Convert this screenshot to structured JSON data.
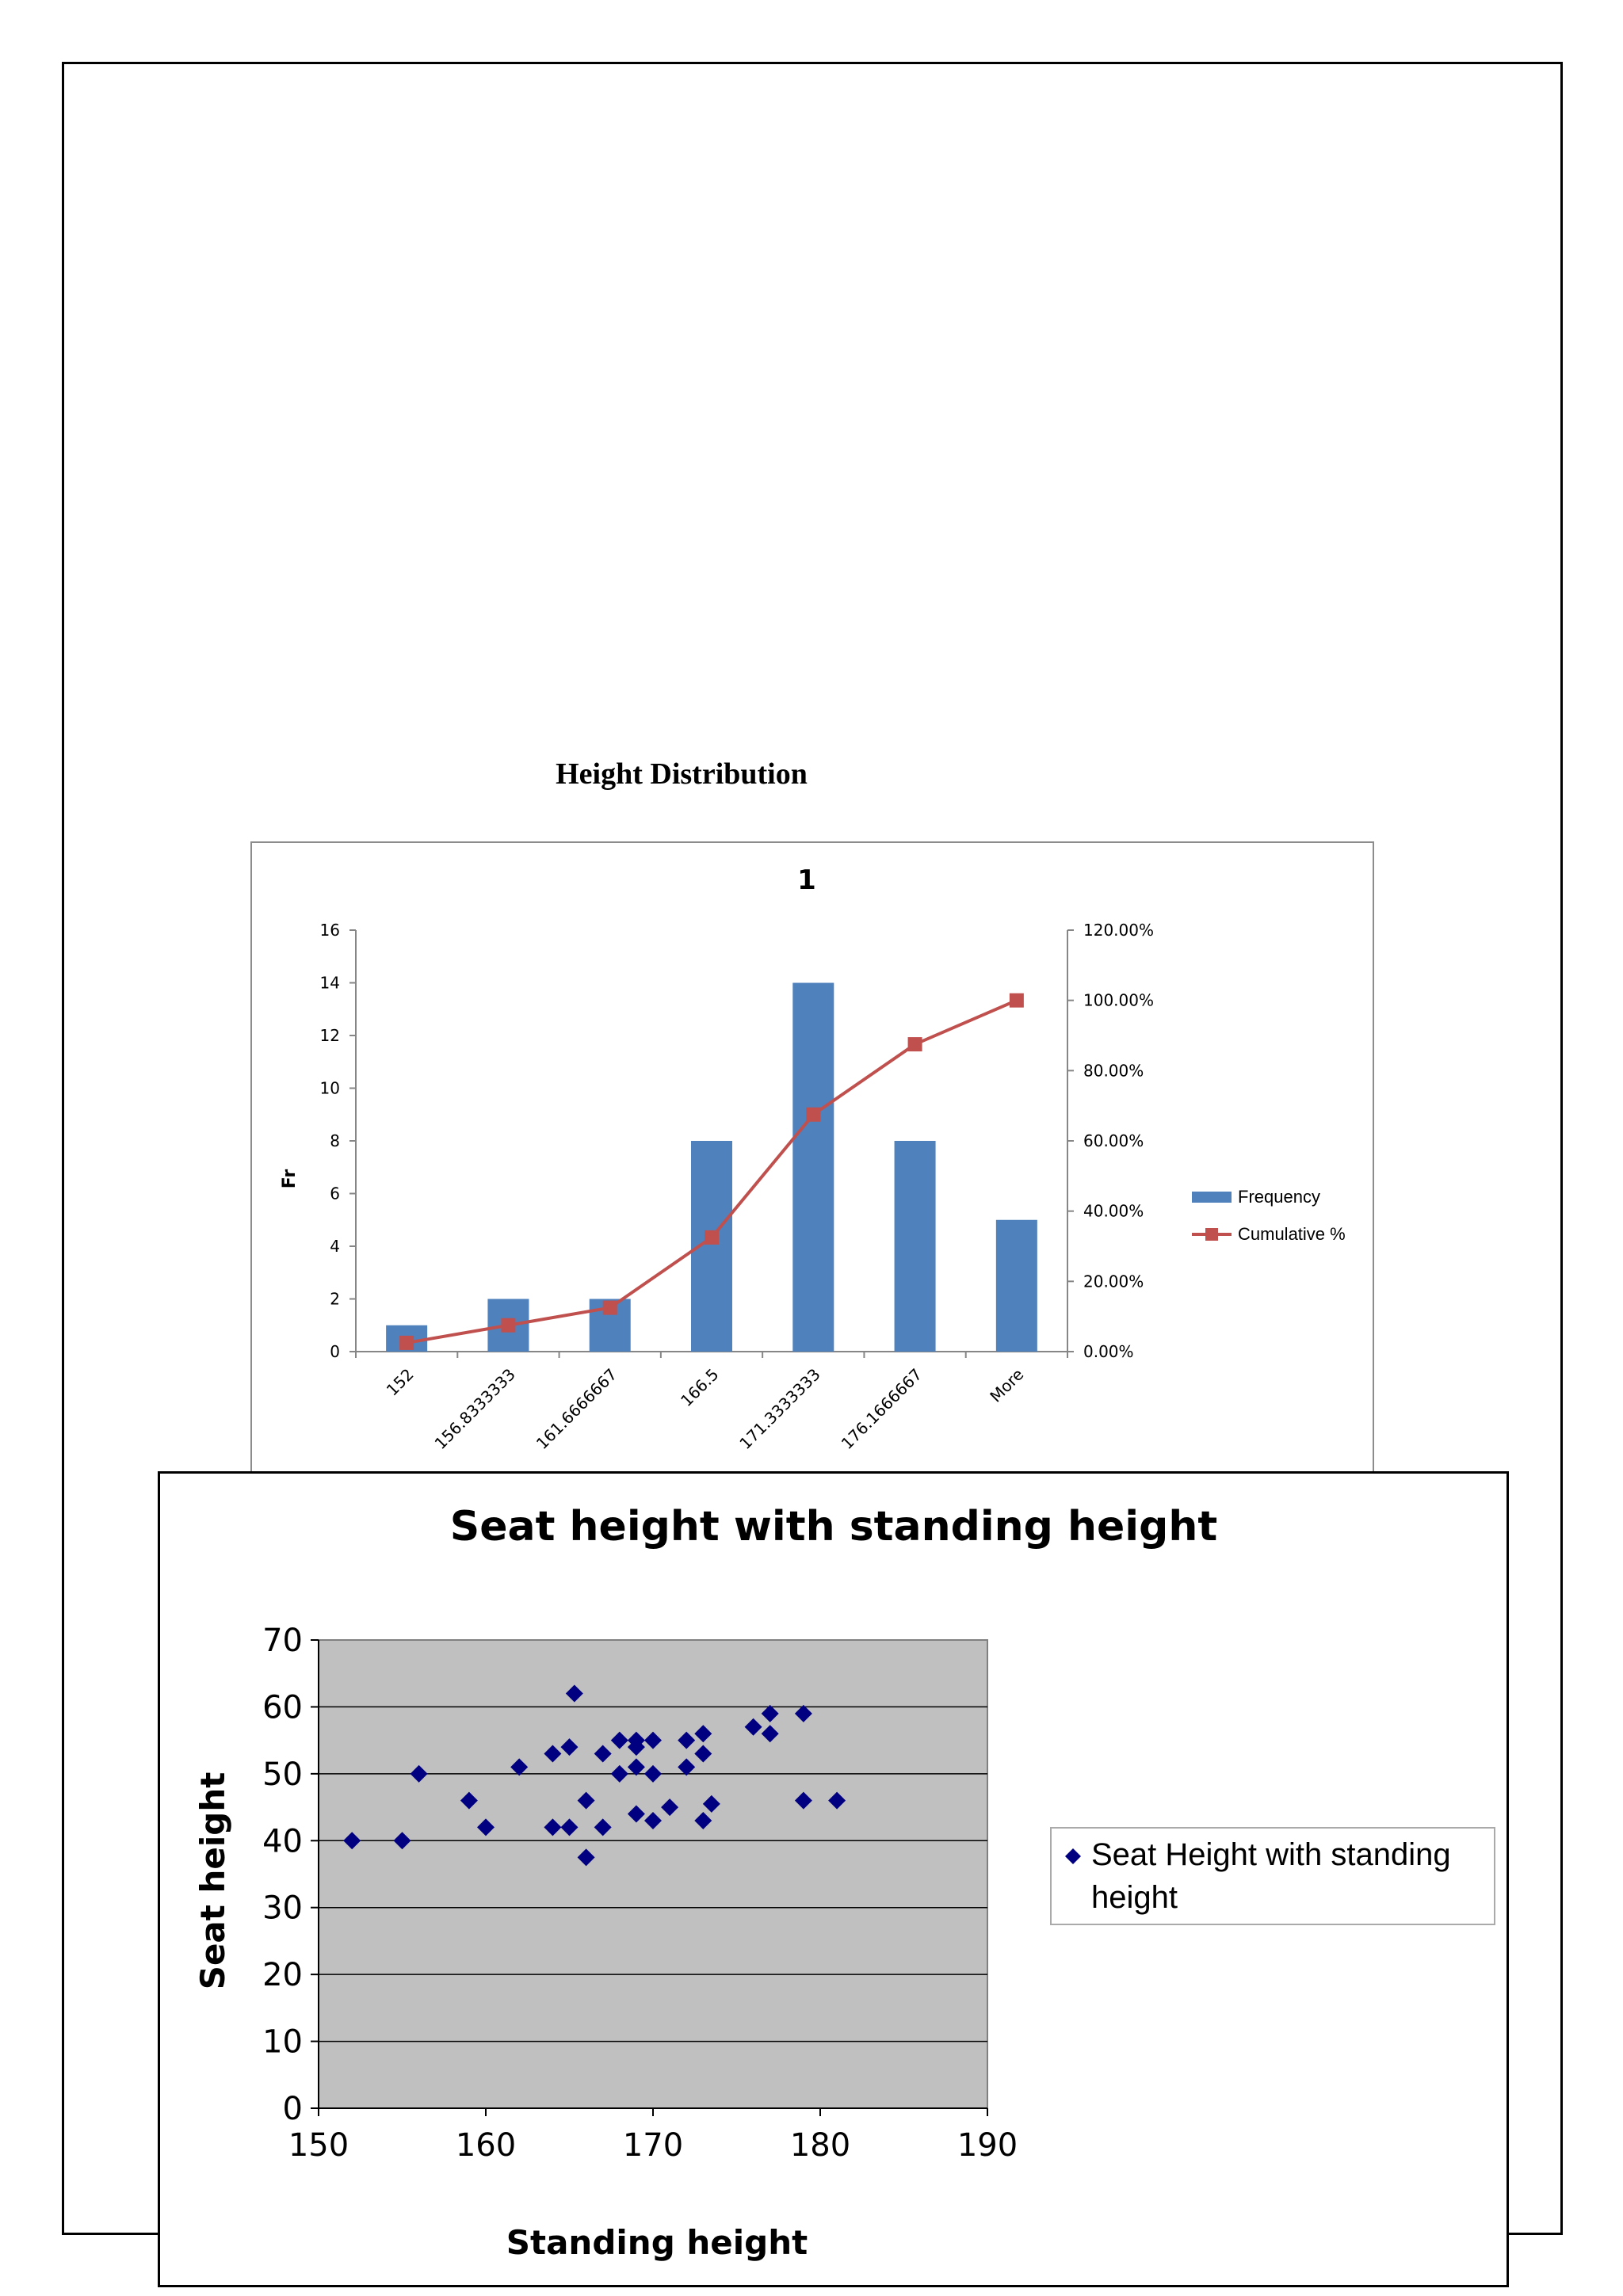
{
  "page": {
    "title": "Height Distribution"
  },
  "chart_data": [
    {
      "type": "bar",
      "title": "1",
      "ylabel": "Fr",
      "categories": [
        "152",
        "156.8333333",
        "161.6666667",
        "166.5",
        "171.3333333",
        "176.1666667",
        "More"
      ],
      "series": [
        {
          "name": "Frequency",
          "type": "bar",
          "values": [
            1,
            2,
            2,
            8,
            14,
            8,
            5
          ],
          "color": "#4f81bd",
          "axis": "left"
        },
        {
          "name": "Cumulative %",
          "type": "line",
          "values": [
            2.5,
            7.5,
            12.5,
            32.5,
            67.5,
            87.5,
            100.0
          ],
          "color": "#c0504d",
          "axis": "right"
        }
      ],
      "ylim": [
        0,
        16
      ],
      "yticks": [
        "0",
        "2",
        "4",
        "6",
        "8",
        "10",
        "12",
        "14",
        "16"
      ],
      "y2lim": [
        0,
        120
      ],
      "y2ticks": [
        "0.00%",
        "20.00%",
        "40.00%",
        "60.00%",
        "80.00%",
        "100.00%",
        "120.00%"
      ],
      "legend": "right"
    },
    {
      "type": "scatter",
      "title": "Seat height with standing height",
      "xlabel": "Standing height",
      "ylabel": "Seat height",
      "xlim": [
        150,
        190
      ],
      "ylim": [
        0,
        70
      ],
      "xticks": [
        "150",
        "160",
        "170",
        "180",
        "190"
      ],
      "yticks": [
        "0",
        "10",
        "20",
        "30",
        "40",
        "50",
        "60",
        "70"
      ],
      "grid": true,
      "plot_background": "#c0c0c0",
      "legend": "right",
      "series": [
        {
          "name": "Seat Height with standing height",
          "color": "#000080",
          "marker": "diamond",
          "points": [
            [
              152,
              40
            ],
            [
              155,
              40
            ],
            [
              156,
              50
            ],
            [
              159,
              46
            ],
            [
              160,
              42
            ],
            [
              162,
              51
            ],
            [
              164,
              53
            ],
            [
              164,
              42
            ],
            [
              165,
              54
            ],
            [
              165,
              42
            ],
            [
              165.3,
              62
            ],
            [
              166,
              46
            ],
            [
              166,
              37.5
            ],
            [
              167,
              53
            ],
            [
              167,
              42
            ],
            [
              168,
              55
            ],
            [
              168,
              50
            ],
            [
              169,
              55
            ],
            [
              169,
              54
            ],
            [
              169,
              51
            ],
            [
              169,
              44
            ],
            [
              170,
              55
            ],
            [
              170,
              50
            ],
            [
              170,
              43
            ],
            [
              171,
              45
            ],
            [
              172,
              55
            ],
            [
              172,
              51
            ],
            [
              173,
              56
            ],
            [
              173,
              53
            ],
            [
              173,
              43
            ],
            [
              173.5,
              45.5
            ],
            [
              176,
              57
            ],
            [
              177,
              59
            ],
            [
              177,
              56
            ],
            [
              179,
              59
            ],
            [
              179,
              46
            ],
            [
              181,
              46
            ]
          ]
        }
      ]
    }
  ]
}
